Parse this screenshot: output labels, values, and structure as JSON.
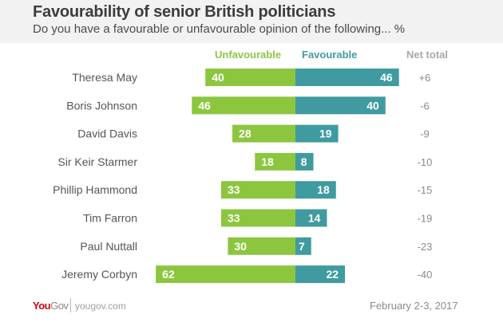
{
  "header": {
    "title": "Favourability of senior British politicians",
    "subtitle": "Do you have a favourable or unfavourable opinion of the following... %"
  },
  "footer": {
    "logo_you": "You",
    "logo_gov": "Gov",
    "url": "yougov.com",
    "date": "February 2-3, 2017"
  },
  "colors": {
    "unfavourable": "#8cc63f",
    "favourable": "#3f9ba0",
    "net": "#8a8a8a",
    "label": "#555555"
  },
  "chart_data": {
    "type": "bar",
    "orientation": "horizontal-diverging",
    "title": "Favourability of senior British politicians",
    "subtitle": "Do you have a favourable or unfavourable opinion of the following... %",
    "column_headers": {
      "unfavourable": "Unfavourable",
      "favourable": "Favourable",
      "net": "Net total"
    },
    "categories": [
      "Theresa May",
      "Boris Johnson",
      "David Davis",
      "Sir Keir Starmer",
      "Phillip Hammond",
      "Tim Farron",
      "Paul Nuttall",
      "Jeremy Corbyn"
    ],
    "series": [
      {
        "name": "Unfavourable",
        "values": [
          40,
          46,
          28,
          18,
          33,
          33,
          30,
          62
        ]
      },
      {
        "name": "Favourable",
        "values": [
          46,
          40,
          19,
          8,
          18,
          14,
          7,
          22
        ]
      }
    ],
    "net_total": [
      "+6",
      "-6",
      "-9",
      "-10",
      "-15",
      "-19",
      "-23",
      "-40"
    ],
    "unit": "%",
    "grid": false,
    "legend": "top"
  }
}
